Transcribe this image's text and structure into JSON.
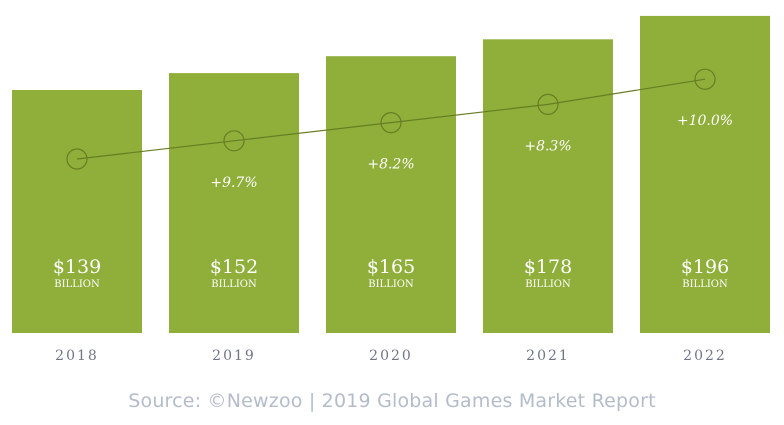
{
  "chart_data": {
    "type": "bar",
    "categories": [
      "2018",
      "2019",
      "2020",
      "2021",
      "2022"
    ],
    "series": [
      {
        "values": [
          139,
          152,
          165,
          178,
          196
        ],
        "labels": [
          "$139",
          "$152",
          "$165",
          "$178",
          "$196"
        ]
      }
    ],
    "value_unit": "BILLION",
    "growth_line": {
      "growth_labels": [
        "",
        "+9.7%",
        "+8.2%",
        "+8.3%",
        "+10.0%"
      ]
    },
    "colors": {
      "bar": "#8fae3a",
      "line": "#667e23",
      "text_on_bar": "#ffffff",
      "category_text": "#707684"
    },
    "grid": false,
    "legend": "none"
  },
  "source_text": "Source: ©Newzoo | 2019 Global Games Market Report"
}
